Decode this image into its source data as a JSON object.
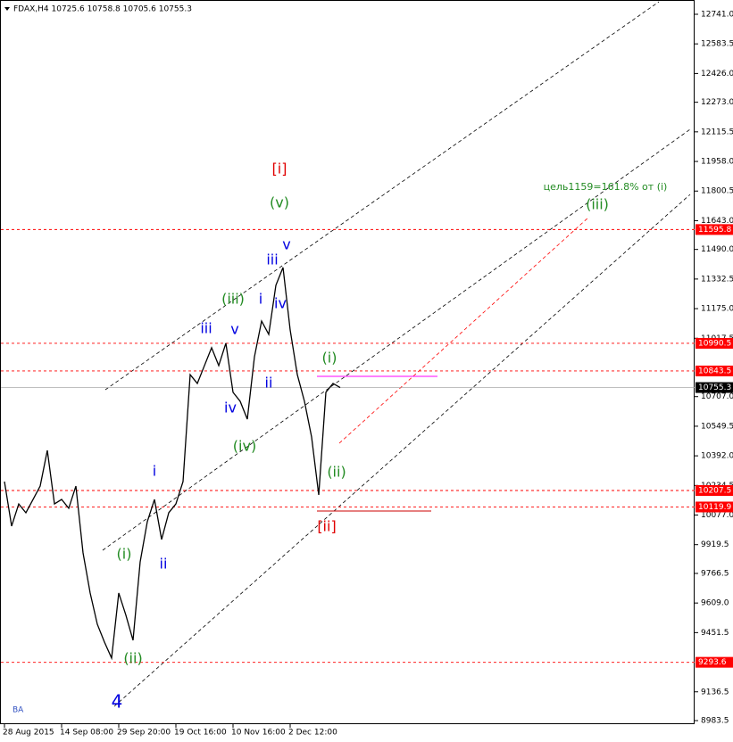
{
  "chart_data": {
    "type": "line",
    "title": "FDAX,H4  10725.6 10758.8 10705.6 10755.3",
    "categories": [
      "28 Aug 2015",
      null,
      null,
      null,
      null,
      null,
      null,
      null,
      "14 Sep 08:00",
      null,
      null,
      null,
      null,
      null,
      null,
      null,
      "29 Sep 20:00",
      null,
      null,
      null,
      null,
      null,
      null,
      null,
      "19 Oct 16:00",
      null,
      null,
      null,
      null,
      null,
      null,
      null,
      "10 Nov 16:00",
      null,
      null,
      null,
      null,
      null,
      null,
      null,
      "2 Dec 12:00",
      null,
      null,
      null,
      null,
      null,
      null,
      null
    ],
    "series": [
      {
        "color": "#000000",
        "values": [
          10255,
          10018,
          10136,
          10089,
          10160,
          10231,
          10421,
          10136,
          10160,
          10113,
          10231,
          9876,
          9662,
          9496,
          9401,
          9316,
          9662,
          9544,
          9411,
          9828,
          10042,
          10160,
          9947,
          10089,
          10136,
          10255,
          10824,
          10777,
          10872,
          10967,
          10872,
          10991,
          10730,
          10682,
          10587,
          10919,
          11109,
          11038,
          11299,
          11394,
          11062,
          10824,
          10682,
          10492,
          10184,
          10730,
          10777,
          10755.3
        ]
      }
    ],
    "ylim": [
      8983.5,
      12741
    ],
    "yticks": [
      {
        "value": 12741,
        "label": "12741.0"
      },
      12583.5,
      {
        "value": 12426,
        "label": "12426.0"
      },
      {
        "value": 12273,
        "label": "12273.0"
      },
      12115.5,
      {
        "value": 11958,
        "label": "11958.0"
      },
      11800.5,
      {
        "value": 11643,
        "label": "11643.0"
      },
      {
        "value": 11490,
        "label": "11490.0"
      },
      11332.5,
      {
        "value": 11175,
        "label": "11175.0"
      },
      11017.5,
      {
        "value": 10707,
        "label": "10707.0"
      },
      10549.5,
      {
        "value": 10392,
        "label": "10392.0"
      },
      10234.5,
      {
        "value": 10077,
        "label": "10077.0"
      },
      9919.5,
      9766.5,
      {
        "value": 9609,
        "label": "9609.0"
      },
      9451.5,
      9136.5,
      8983.5
    ],
    "levels": [
      11595.8,
      10990.5,
      10843.5,
      10207.5,
      10119.9,
      9293.6
    ],
    "level_color": "#ff0000",
    "last_price": 10755.3,
    "annotations": [
      {
        "text": "[i]",
        "color": "#e00000"
      },
      {
        "text": "(v)",
        "color": "#228b22"
      },
      {
        "text": "v",
        "color": "#0000e0"
      },
      {
        "text": "iii",
        "color": "#0000e0"
      },
      {
        "text": "i",
        "color": "#0000e0"
      },
      {
        "text": "iv",
        "color": "#0000e0"
      },
      {
        "text": "(iii)",
        "color": "#228b22"
      },
      {
        "text": "iii",
        "color": "#0000e0"
      },
      {
        "text": "v",
        "color": "#0000e0"
      },
      {
        "text": "ii",
        "color": "#0000e0"
      },
      {
        "text": "iv",
        "color": "#0000e0"
      },
      {
        "text": "(iv)",
        "color": "#228b22"
      },
      {
        "text": "(i)",
        "color": "#228b22"
      },
      {
        "text": "(ii)",
        "color": "#228b22"
      },
      {
        "text": "[ii]",
        "color": "#e00000"
      },
      {
        "text": "i",
        "color": "#0000e0"
      },
      {
        "text": "(i)",
        "color": "#228b22"
      },
      {
        "text": "ii",
        "color": "#0000e0"
      },
      {
        "text": "(ii)",
        "color": "#228b22"
      },
      {
        "text": "4",
        "color": "#0000e0"
      },
      {
        "text": "цель1159=161.8% от (i)",
        "color": "#228b22"
      },
      {
        "text": "(iii)",
        "color": "#228b22"
      }
    ],
    "watermark": "BA"
  }
}
